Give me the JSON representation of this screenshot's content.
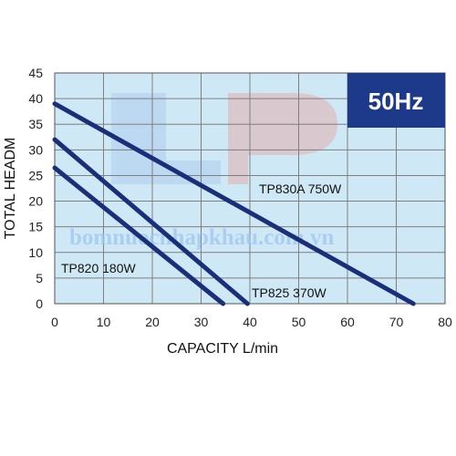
{
  "chart_data": {
    "type": "line",
    "xlabel": "CAPACITY L/min",
    "ylabel": "TOTAL HEADM",
    "xlim": [
      0,
      80
    ],
    "ylim": [
      0,
      45
    ],
    "x_ticks": [
      "0",
      "10",
      "20",
      "30",
      "40",
      "50",
      "60",
      "70",
      "80"
    ],
    "y_ticks": [
      "0",
      "5",
      "10",
      "15",
      "20",
      "25",
      "30",
      "35",
      "40",
      "45"
    ],
    "grid": true,
    "badge": "50Hz",
    "series": [
      {
        "name": "TP830A 750W",
        "x": [
          0,
          73.5
        ],
        "y": [
          39,
          0
        ]
      },
      {
        "name": "TP825 370W",
        "x": [
          0,
          39.5
        ],
        "y": [
          32,
          0
        ]
      },
      {
        "name": "TP820 180W",
        "x": [
          0,
          34.5
        ],
        "y": [
          26.5,
          0
        ]
      }
    ],
    "colors": {
      "plot_bg": "#cfe8f5",
      "grid": "#7f7f7f",
      "line": "#1a2f7a",
      "badge_bg": "#1d3a8a"
    }
  },
  "watermark": {
    "text": "bomnuocnhapkhau.com.vn",
    "logo": "LP"
  }
}
